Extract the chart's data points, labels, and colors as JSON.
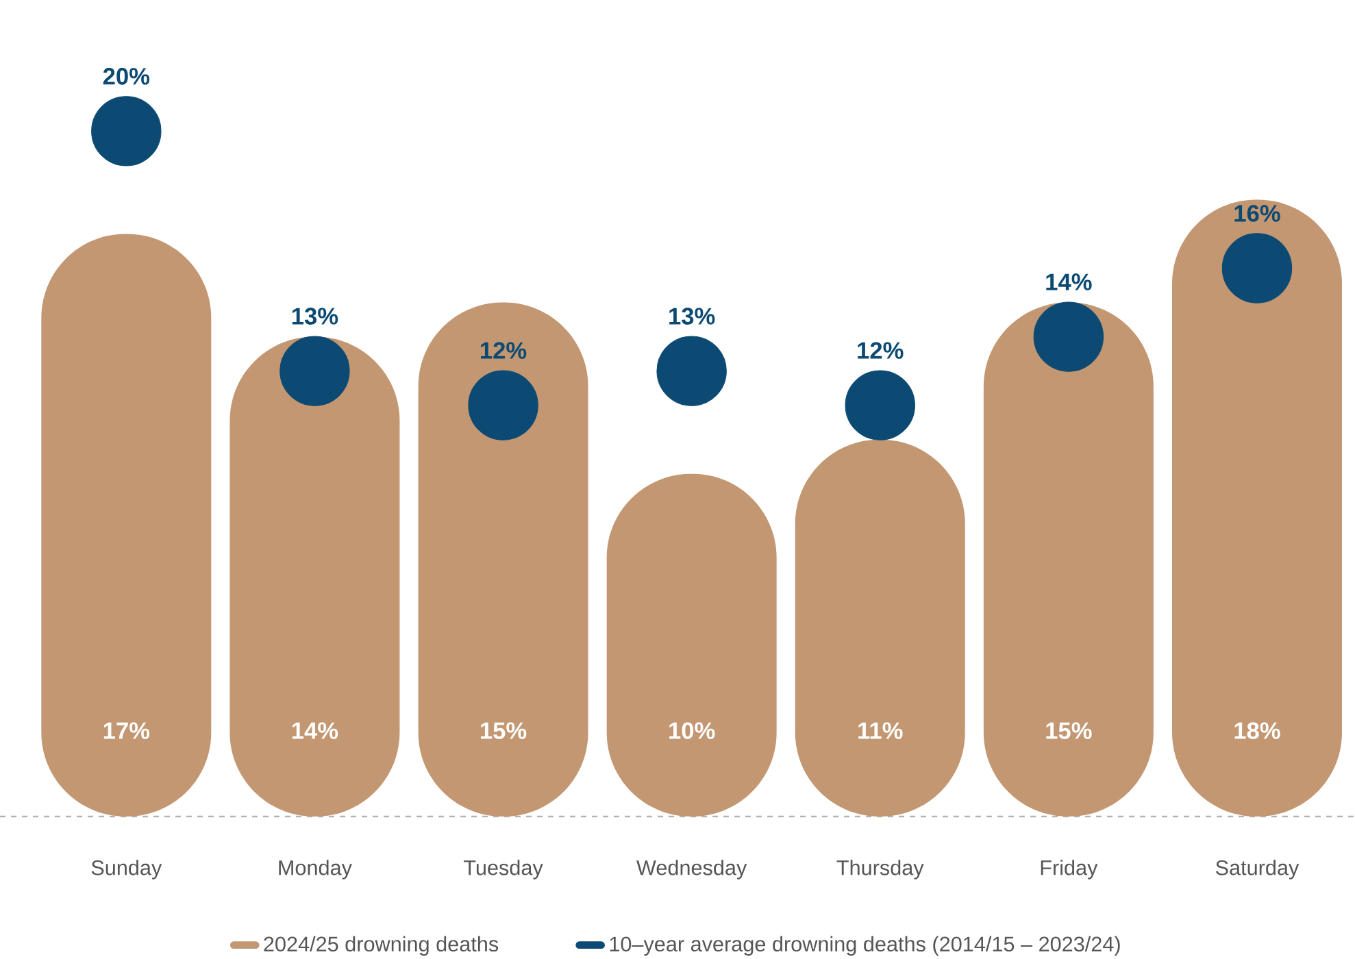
{
  "chart_data": {
    "type": "bar",
    "categories": [
      "Sunday",
      "Monday",
      "Tuesday",
      "Wednesday",
      "Thursday",
      "Friday",
      "Saturday"
    ],
    "series": [
      {
        "name": "2024/25 drowning deaths",
        "color": "#c39772",
        "values": [
          17,
          14,
          15,
          10,
          11,
          15,
          18
        ],
        "value_labels": [
          "17%",
          "14%",
          "15%",
          "10%",
          "11%",
          "15%",
          "18%"
        ]
      },
      {
        "name": "10–year average drowning deaths (2014/15 – 2023/24)",
        "type": "scatter",
        "color": "#0c4a73",
        "values": [
          20,
          13,
          12,
          13,
          12,
          14,
          16
        ],
        "value_labels": [
          "20%",
          "13%",
          "12%",
          "13%",
          "12%",
          "14%",
          "16%"
        ]
      }
    ],
    "tick_labels": "x",
    "legend": "bottom",
    "grid": false
  }
}
